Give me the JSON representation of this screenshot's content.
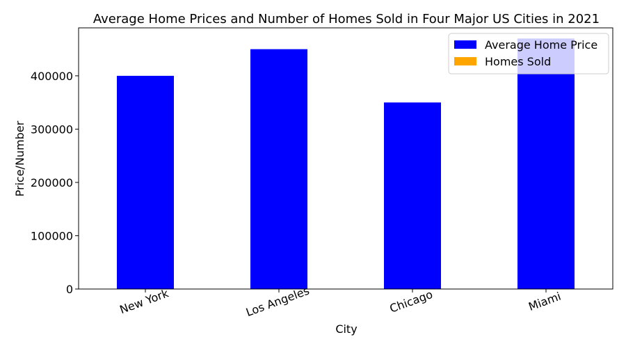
{
  "chart_data": {
    "type": "bar",
    "title": "Average Home Prices and Number of Homes Sold in Four Major US Cities in 2021",
    "xlabel": "City",
    "ylabel": "Price/Number",
    "categories": [
      "New York",
      "Los Angeles",
      "Chicago",
      "Miami"
    ],
    "ylim": [
      0,
      490000
    ],
    "yticks": [
      0,
      100000,
      200000,
      300000,
      400000
    ],
    "yticklabels": [
      "0",
      "100000",
      "200000",
      "300000",
      "400000"
    ],
    "grid": false,
    "legend_position": "top-right",
    "series": [
      {
        "name": "Average Home Price",
        "color": "#0000ff",
        "values": [
          400000,
          450000,
          350000,
          470000
        ]
      },
      {
        "name": "Homes Sold",
        "color": "#ffa500",
        "values": [
          0,
          0,
          0,
          0
        ]
      }
    ]
  }
}
